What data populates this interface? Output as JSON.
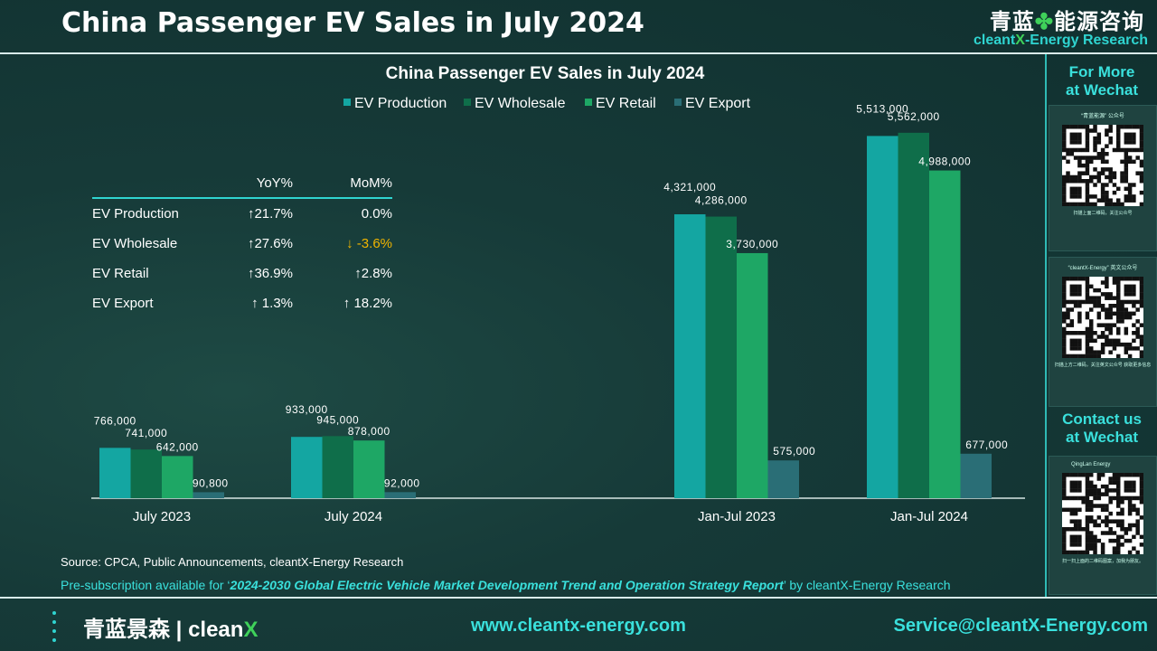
{
  "header": {
    "title": "China Passenger EV Sales in July 2024"
  },
  "brand": {
    "name_cn": "青蓝",
    "clover": "✤",
    "name_cn2": "能源咨询",
    "name_en_pre": "cleant",
    "name_en_x": "X",
    "name_en_post": "-Energy Research"
  },
  "colors": {
    "EV Production": "#14a6a2",
    "EV Wholesale": "#0f6e4a",
    "EV Retail": "#1ea765",
    "EV Export": "#2a6e76",
    "accent": "#3ae0dc",
    "warn": "#f0b400"
  },
  "chart_data": {
    "type": "bar",
    "title": "China Passenger EV Sales in July 2024",
    "legend_position": "top",
    "categories": [
      "July 2023",
      "July 2024",
      "Jan-Jul 2023",
      "Jan-Jul 2024"
    ],
    "series": [
      {
        "name": "EV Production",
        "values": [
          766000,
          933000,
          4321000,
          5513000
        ]
      },
      {
        "name": "EV Wholesale",
        "values": [
          741000,
          945000,
          4286000,
          5562000
        ]
      },
      {
        "name": "EV Retail",
        "values": [
          642000,
          878000,
          3730000,
          4988000
        ]
      },
      {
        "name": "EV Export",
        "values": [
          90800,
          92000,
          575000,
          677000
        ]
      }
    ],
    "data_labels": [
      [
        "766,000",
        "933,000",
        "4,321,000",
        "5,513,000"
      ],
      [
        "741,000",
        "945,000",
        "4,286,000",
        "5,562,000"
      ],
      [
        "642,000",
        "878,000",
        "3,730,000",
        "4,988,000"
      ],
      [
        "90,800",
        "92,000",
        "575,000",
        "677,000"
      ]
    ],
    "ylim": [
      0,
      6000000
    ],
    "grid": false
  },
  "stats_table": {
    "headers": [
      "",
      "YoY%",
      "MoM%"
    ],
    "rows": [
      {
        "name": "EV Production",
        "yoy": "↑21.7%",
        "mom": "0.0%",
        "mom_down": false
      },
      {
        "name": "EV Wholesale",
        "yoy": "↑27.6%",
        "mom": "↓ -3.6%",
        "mom_down": true
      },
      {
        "name": "EV Retail",
        "yoy": "↑36.9%",
        "mom": "↑2.8%",
        "mom_down": false
      },
      {
        "name": "EV Export",
        "yoy": "↑ 1.3%",
        "mom": "↑ 18.2%",
        "mom_down": false
      }
    ]
  },
  "source": "Source: CPCA, Public Announcements, cleantX-Energy Research",
  "presub": {
    "pre": "Pre-subscription available for ‘",
    "report": "2024-2030 Global Electric Vehicle Market Development Trend and Operation Strategy Report",
    "post": "’ by cleantX-Energy Research"
  },
  "sidebar": {
    "for_more": "For More\nat Wechat",
    "contact": "Contact us\nat Wechat",
    "qr1_caption": "“青蓝能源” 公众号",
    "qr1_foot": "扫描上面二维码，关注公众号",
    "qr2_caption": "“cleantX-Energy” 英文公众号",
    "qr2_foot": "扫描上方二维码，关注英文公众号 获取更多信息",
    "qr3_caption": "QingLan Energy",
    "qr3_foot": "扫一扫上面的二维码图案，加我为朋友。"
  },
  "footer": {
    "logo_cn": "青蓝景森",
    "logo_sep": " | ",
    "logo_en_pre": "clean",
    "logo_en_x": "X",
    "website": "www.cleantx-energy.com",
    "email": "Service@cleantX-Energy.com"
  }
}
